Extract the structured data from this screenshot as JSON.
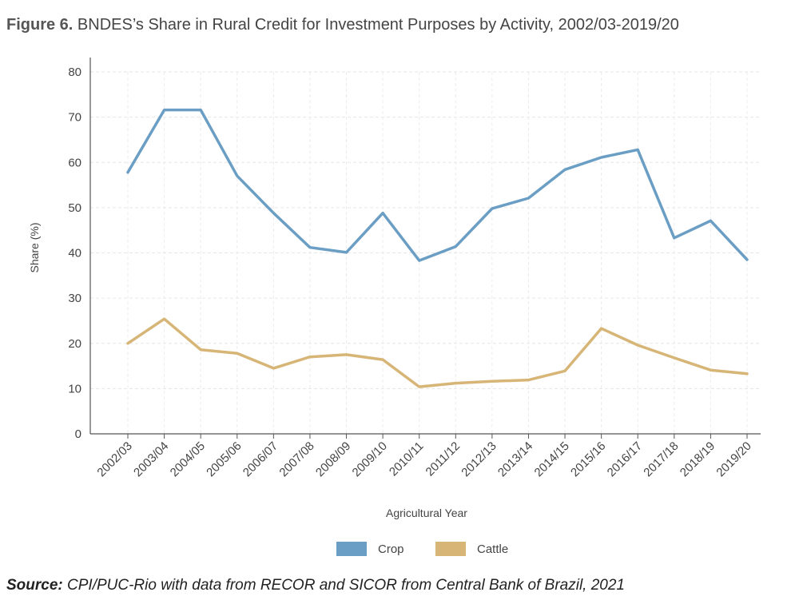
{
  "title_prefix": "Figure 6.",
  "title_text": "BNDES’s Share in Rural Credit for Investment Purposes by Activity, 2002/03-2019/20",
  "source_prefix": "Source:",
  "source_text": "CPI/PUC-Rio with data from RECOR and SICOR from Central Bank of Brazil, 2021",
  "chart_data": {
    "type": "line",
    "xlabel": "Agricultural Year",
    "ylabel": "Share (%)",
    "ylim": [
      0,
      80
    ],
    "yticks": [
      0,
      10,
      20,
      30,
      40,
      50,
      60,
      70,
      80
    ],
    "grid": true,
    "legend_position": "bottom",
    "categories": [
      "2002/03",
      "2003/04",
      "2004/05",
      "2005/06",
      "2006/07",
      "2007/08",
      "2008/09",
      "2009/10",
      "2010/11",
      "2011/12",
      "2012/13",
      "2013/14",
      "2014/15",
      "2015/16",
      "2016/17",
      "2017/18",
      "2018/19",
      "2019/20"
    ],
    "series": [
      {
        "name": "Crop",
        "color": "#6b9ec4",
        "values": [
          57.8,
          71.6,
          71.6,
          57.0,
          48.8,
          41.2,
          40.1,
          48.8,
          38.3,
          41.4,
          49.8,
          52.1,
          58.4,
          61.1,
          62.8,
          43.3,
          47.1,
          38.5
        ]
      },
      {
        "name": "Cattle",
        "color": "#d7b577",
        "values": [
          20.0,
          25.4,
          18.6,
          17.8,
          14.5,
          17.0,
          17.5,
          16.4,
          10.4,
          11.2,
          11.6,
          11.9,
          13.9,
          23.3,
          19.6,
          16.8,
          14.1,
          13.3
        ]
      }
    ]
  }
}
